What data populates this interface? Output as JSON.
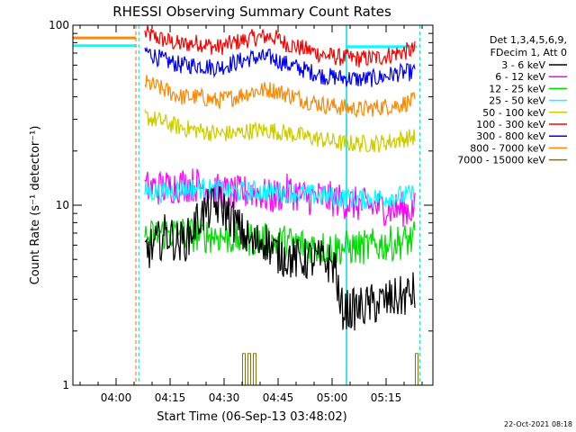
{
  "colors": {
    "3-6": "#000000",
    "6-12": "#ff00ff",
    "12-25": "#00dd00",
    "25-50": "#00ffff",
    "50-100": "#cccc00",
    "100-300": "#ff0000",
    "300-800": "#0000ff",
    "800-7000": "#ff8800",
    "7000-15000": "#8b7500"
  },
  "chart_data": {
    "type": "line",
    "title": "RHESSI Observing Summary Count Rates",
    "xlabel": "Start Time (06-Sep-13 03:48:02)",
    "ylabel": "Count Rate (s⁻¹ detector⁻¹)",
    "yscale": "log",
    "ylim": [
      1,
      100
    ],
    "xlim_minutes": [
      0,
      100
    ],
    "x_ticks": [
      {
        "label": "04:00",
        "t": 12
      },
      {
        "label": "04:15",
        "t": 27
      },
      {
        "label": "04:30",
        "t": 42
      },
      {
        "label": "04:45",
        "t": 57
      },
      {
        "label": "05:00",
        "t": 72
      },
      {
        "label": "05:15",
        "t": 87
      }
    ],
    "y_ticks": [
      {
        "label": "1",
        "v": 1
      },
      {
        "label": "10",
        "v": 10
      },
      {
        "label": "100",
        "v": 100
      }
    ],
    "legend": {
      "header": [
        "Det 1,3,4,5,6,9,",
        "FDecim 1, Att 0"
      ],
      "position": "right",
      "entries": [
        {
          "label": "3 - 6 keV",
          "key": "3-6"
        },
        {
          "label": "6 - 12 keV",
          "key": "6-12"
        },
        {
          "label": "12 - 25 keV",
          "key": "12-25"
        },
        {
          "label": "25 - 50 keV",
          "key": "25-50"
        },
        {
          "label": "50 - 100 keV",
          "key": "50-100"
        },
        {
          "label": "100 - 300 keV",
          "key": "100-300"
        },
        {
          "label": "300 - 800 keV",
          "key": "300-800"
        },
        {
          "label": "800 - 7000 keV",
          "key": "800-7000"
        },
        {
          "label": "7000 - 15000 keV",
          "key": "7000-15000"
        }
      ]
    },
    "series": [
      {
        "name": "100 - 300 keV",
        "key": "100-300",
        "x": [
          20,
          25,
          30,
          35,
          40,
          45,
          50,
          55,
          60,
          65,
          70,
          75,
          80,
          85,
          90,
          95
        ],
        "y": [
          90,
          83,
          78,
          80,
          75,
          80,
          85,
          87,
          78,
          73,
          68,
          66,
          65,
          66,
          70,
          73
        ],
        "noise": 0.05
      },
      {
        "name": "300 - 800 keV",
        "key": "300-800",
        "x": [
          20,
          25,
          30,
          35,
          40,
          45,
          50,
          55,
          60,
          65,
          70,
          75,
          80,
          85,
          90,
          95
        ],
        "y": [
          72,
          64,
          60,
          60,
          58,
          62,
          66,
          66,
          60,
          56,
          52,
          51,
          50,
          51,
          54,
          55
        ],
        "noise": 0.05
      },
      {
        "name": "800 - 7000 keV",
        "key": "800-7000",
        "x": [
          20,
          25,
          30,
          35,
          40,
          45,
          50,
          55,
          60,
          65,
          70,
          75,
          80,
          85,
          90,
          95
        ],
        "y": [
          48,
          44,
          40,
          40,
          38,
          40,
          43,
          44,
          41,
          38,
          36,
          35,
          34,
          35,
          36,
          38
        ],
        "noise": 0.05
      },
      {
        "name": "50 - 100 keV",
        "key": "50-100",
        "x": [
          20,
          25,
          30,
          35,
          40,
          45,
          50,
          55,
          60,
          65,
          70,
          75,
          80,
          85,
          90,
          95
        ],
        "y": [
          31,
          29,
          27,
          26,
          25,
          25,
          26,
          26,
          25,
          24,
          23,
          22,
          22,
          22,
          23,
          24
        ],
        "noise": 0.05
      },
      {
        "name": "6 - 12 keV",
        "key": "6-12",
        "x": [
          20,
          25,
          30,
          35,
          40,
          45,
          50,
          55,
          60,
          65,
          70,
          75,
          80,
          85,
          90,
          95
        ],
        "y": [
          12.5,
          12.5,
          13,
          13,
          12,
          11.5,
          12,
          11,
          12,
          11,
          11,
          10.5,
          10,
          9.8,
          9.5,
          9.5
        ],
        "noise": 0.1
      },
      {
        "name": "25 - 50 keV",
        "key": "25-50",
        "x": [
          20,
          25,
          30,
          35,
          40,
          45,
          50,
          55,
          60,
          65,
          70,
          75,
          80,
          85,
          90,
          95
        ],
        "y": [
          12,
          11.8,
          12.4,
          12.4,
          12.2,
          11.8,
          12,
          11.8,
          11.8,
          11.5,
          11.2,
          11,
          10.8,
          11,
          11.2,
          11.4
        ],
        "noise": 0.06
      },
      {
        "name": "12 - 25 keV",
        "key": "12-25",
        "x": [
          20,
          25,
          30,
          35,
          40,
          45,
          50,
          55,
          60,
          65,
          70,
          75,
          80,
          85,
          90,
          95
        ],
        "y": [
          6.5,
          7,
          7,
          6.8,
          6.8,
          6.5,
          6.5,
          6.3,
          6.2,
          6,
          5.8,
          5.8,
          5.8,
          6,
          6.2,
          6.5
        ],
        "noise": 0.1
      },
      {
        "name": "3 - 6 keV",
        "key": "3-6",
        "x": [
          20,
          23,
          26,
          29,
          32,
          35,
          38,
          41,
          44,
          47,
          50,
          53,
          56,
          59,
          62,
          65,
          68,
          71,
          73,
          74,
          77,
          80,
          83,
          86,
          89,
          92,
          95
        ],
        "y": [
          5.5,
          6,
          7,
          6.2,
          6.5,
          8.5,
          9.5,
          10,
          8.5,
          7,
          6,
          6.5,
          5.5,
          5.2,
          5,
          5,
          5,
          4.8,
          4.6,
          2.7,
          2.6,
          2.7,
          2.8,
          2.9,
          3,
          3.1,
          3.3
        ],
        "noise": 0.12
      },
      {
        "name": "7000 - 15000 keV",
        "key": "7000-15000",
        "x": [
          47.5,
          49.0,
          50.5,
          95.5
        ],
        "y": [
          1.5,
          1.5,
          1.5,
          1.5
        ],
        "style": "spikes"
      }
    ],
    "pre_gap_levels": [
      {
        "key": "800-7000",
        "value": 85,
        "x": [
          0,
          17.5
        ]
      },
      {
        "key": "25-50",
        "value": 77,
        "x": [
          0,
          17.5
        ]
      },
      {
        "key": "25-50",
        "value": 76,
        "x": [
          76,
          95.5
        ]
      }
    ]
  },
  "footer": {
    "timestamp": "22-Oct-2021 08:18"
  }
}
